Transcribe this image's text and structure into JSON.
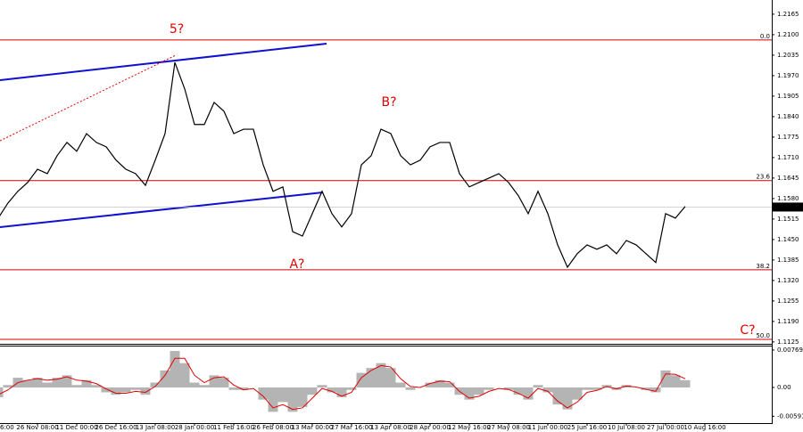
{
  "chart_data": [
    {
      "type": "line",
      "categories": [
        "6:00",
        null,
        null,
        null,
        "26 Nov 08:00",
        null,
        null,
        null,
        "11 Dec 00:00",
        null,
        null,
        null,
        "26 Dec 16:00",
        null,
        null,
        null,
        "13 Jan 08:00",
        null,
        null,
        null,
        "28 Jan 00:00",
        null,
        null,
        null,
        "11 Feb 16:00",
        null,
        null,
        null,
        "26 Feb 08:00",
        null,
        null,
        null,
        "13 Mar 00:00",
        null,
        null,
        null,
        "27 Mar 16:00",
        null,
        null,
        null,
        "13 Apr 08:00",
        null,
        null,
        null,
        "28 Apr 00:00",
        null,
        null,
        null,
        "12 May 16:00",
        null,
        null,
        null,
        "27 May 08:00",
        null,
        null,
        null,
        "11 Jun 00:00",
        null,
        null,
        null,
        "25 Jun 16:00",
        null,
        null,
        null,
        "10 Jul 08:00",
        null,
        null,
        null,
        "27 Jul 00:00",
        null,
        null,
        null,
        "10 Aug 16:00",
        null,
        null,
        null,
        null,
        null,
        null
      ],
      "values": [
        1.1518,
        1.1566,
        1.1603,
        1.1631,
        1.1673,
        1.1659,
        1.1716,
        1.1758,
        1.173,
        1.1786,
        1.1758,
        1.1744,
        1.1702,
        1.1673,
        1.1659,
        1.1622,
        1.1702,
        1.1786,
        1.2012,
        1.1928,
        1.1815,
        1.1815,
        1.1885,
        1.1857,
        1.1786,
        1.18,
        1.18,
        1.1687,
        1.1603,
        1.1617,
        1.1475,
        1.1461,
        1.1532,
        1.1603,
        1.1532,
        1.149,
        1.1532,
        1.1687,
        1.1716,
        1.18,
        1.1786,
        1.1716,
        1.1687,
        1.1702,
        1.1744,
        1.1758,
        1.1758,
        1.1659,
        1.1617,
        1.1631,
        1.1645,
        1.1659,
        1.1631,
        1.1589,
        1.1532,
        1.1603,
        1.1532,
        1.1433,
        1.1362,
        1.1405,
        1.1433,
        1.1419,
        1.1433,
        1.1405,
        1.1447,
        1.1433,
        1.1405,
        1.1377,
        1.1532,
        1.1518,
        1.1555,
        null,
        null,
        null,
        null,
        null,
        null,
        null,
        null
      ],
      "color": "#000000",
      "ylim": [
        1.1119,
        1.221
      ],
      "yticks": [
        1.2165,
        {
          "value": 1.21,
          "label": "1.2100"
        },
        1.2035,
        {
          "value": 1.197,
          "label": "1.1970"
        },
        1.1905,
        {
          "value": 1.184,
          "label": "1.1840"
        },
        1.1775,
        {
          "value": 1.171,
          "label": "1.1710"
        },
        1.1645,
        {
          "value": 1.158,
          "label": "1.1580"
        },
        1.1515,
        {
          "value": 1.145,
          "label": "1.1450"
        },
        1.1385,
        {
          "value": 1.132,
          "label": "1.1320"
        },
        1.1255,
        {
          "value": 1.119,
          "label": "1.1190"
        },
        1.1125
      ],
      "last_price": 1.1553,
      "levels": [
        {
          "value": 1.2083,
          "label": "0.0"
        },
        {
          "value": 1.1637,
          "label": "23.6"
        },
        {
          "value": 1.1354,
          "label": "38.2"
        },
        {
          "value": 1.1133,
          "label": "50.0"
        }
      ],
      "level_color": "#d00000",
      "annotations": [
        "5?",
        "B?",
        "A?",
        "C?"
      ]
    },
    {
      "type": "bar",
      "values": [
        -0.002,
        0.0005,
        0.002,
        0.0015,
        0.002,
        0.001,
        0.002,
        0.0025,
        0.0005,
        0.0015,
        0.0005,
        -0.001,
        -0.0015,
        -0.001,
        -0.0005,
        -0.0015,
        0.001,
        0.0035,
        0.0075,
        0.005,
        0.001,
        0.0005,
        0.0025,
        0.002,
        -0.0005,
        -0.0005,
        0,
        -0.0025,
        -0.005,
        -0.003,
        -0.005,
        -0.004,
        -0.0015,
        0.0005,
        -0.001,
        -0.002,
        -0.0005,
        0.003,
        0.004,
        0.005,
        0.004,
        0.001,
        -0.0005,
        0,
        0.001,
        0.0015,
        0.001,
        -0.0015,
        -0.0025,
        -0.0015,
        -0.0005,
        0,
        -0.0005,
        -0.0015,
        -0.0025,
        0.0005,
        -0.001,
        -0.0035,
        -0.0045,
        -0.0025,
        -0.0005,
        -0.0005,
        0.0005,
        -0.0005,
        0.0005,
        0,
        -0.0005,
        -0.001,
        0.0035,
        0.0025,
        0.0015,
        null,
        null,
        null,
        null,
        null,
        null,
        null,
        null
      ],
      "color": "#b4b4b4",
      "signal": {
        "color": "#e00000",
        "values": [
          -0.0015,
          -0.0005,
          0.001,
          0.0015,
          0.0018,
          0.0015,
          0.0017,
          0.0022,
          0.0015,
          0.0013,
          0.0008,
          -0.0003,
          -0.0012,
          -0.0012,
          -0.0008,
          -0.001,
          0.0002,
          0.0025,
          0.006,
          0.006,
          0.0025,
          0.001,
          0.002,
          0.0022,
          0.0005,
          -0.0005,
          -0.0002,
          -0.0018,
          -0.0042,
          -0.0035,
          -0.0045,
          -0.0042,
          -0.0022,
          -0.0002,
          -0.0008,
          -0.0018,
          -0.001,
          0.002,
          0.0035,
          0.0045,
          0.0042,
          0.0018,
          0.0002,
          0,
          0.0008,
          0.0013,
          0.0012,
          -0.0008,
          -0.0022,
          -0.0018,
          -0.0008,
          -0.0002,
          -0.0004,
          -0.0012,
          -0.0022,
          -0.0002,
          -0.0008,
          -0.0028,
          -0.0042,
          -0.003,
          -0.001,
          -0.0006,
          0.0002,
          -0.0003,
          0.0003,
          0.0001,
          -0.0004,
          -0.0008,
          0.0028,
          0.0027,
          0.0018,
          null,
          null,
          null,
          null,
          null,
          null,
          null,
          null
        ]
      },
      "ylim": [
        -0.00732,
        0.00842
      ],
      "yticks": [
        0.00769,
        {
          "value": 0,
          "label": "0.00"
        },
        -0.00591
      ]
    }
  ]
}
